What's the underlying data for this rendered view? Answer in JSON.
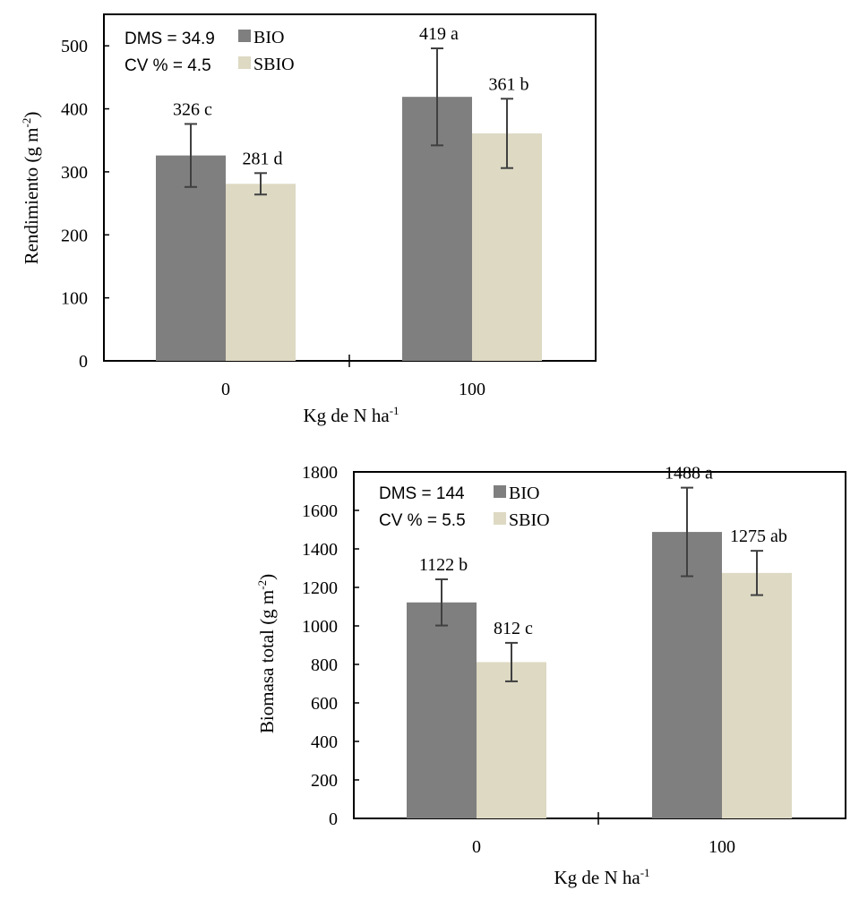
{
  "colors": {
    "bio": "#7f7f7f",
    "sbio": "#ddd9c3",
    "axis": "#000000",
    "error": "#404040"
  },
  "chart_data": [
    {
      "type": "bar",
      "categories": [
        "0",
        "100"
      ],
      "series": [
        {
          "name": "BIO",
          "values": [
            326,
            419
          ],
          "errors": [
            50,
            77
          ],
          "labels": [
            "326 c",
            "419 a"
          ]
        },
        {
          "name": "SBIO",
          "values": [
            281,
            361
          ],
          "errors": [
            17,
            55
          ],
          "labels": [
            "281 d",
            "361 b"
          ]
        }
      ],
      "ylim": [
        0,
        550
      ],
      "yticks": [
        0,
        100,
        200,
        300,
        400,
        500
      ],
      "ylabel_main": "Rendimiento  (g m",
      "ylabel_sup": "-2",
      "ylabel_end": ")",
      "xlabel_main": "Kg  de N ha",
      "xlabel_sup": "-1",
      "annotations": [
        "DMS = 34.9",
        "CV % = 4.5"
      ],
      "legend": [
        "BIO",
        "SBIO"
      ],
      "legend_position": "top-left"
    },
    {
      "type": "bar",
      "categories": [
        "0",
        "100"
      ],
      "series": [
        {
          "name": "BIO",
          "values": [
            1122,
            1488
          ],
          "errors": [
            120,
            230
          ],
          "labels": [
            "1122 b",
            "1488 a"
          ]
        },
        {
          "name": "SBIO",
          "values": [
            812,
            1275
          ],
          "errors": [
            100,
            115
          ],
          "labels": [
            "812 c",
            "1275 ab"
          ]
        }
      ],
      "ylim": [
        0,
        1800
      ],
      "yticks": [
        0,
        200,
        400,
        600,
        800,
        1000,
        1200,
        1400,
        1600,
        1800
      ],
      "ylabel_main": "Biomasa total (g m",
      "ylabel_sup": "-2",
      "ylabel_end": ")",
      "xlabel_main": "Kg  de N ha",
      "xlabel_sup": "-1",
      "annotations": [
        "DMS = 144",
        "CV % = 5.5"
      ],
      "legend": [
        "BIO",
        "SBIO"
      ],
      "legend_position": "top-left"
    }
  ]
}
